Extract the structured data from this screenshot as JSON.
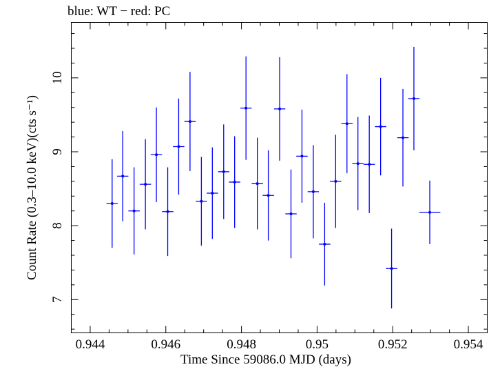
{
  "chart_data": {
    "type": "scatter",
    "title": "blue: WT − red: PC",
    "xlabel": "Time Since 59086.0 MJD (days)",
    "ylabel": "Count Rate (0.3–10.0 keV)(cts s⁻¹)",
    "xlim": [
      0.9435,
      0.9545
    ],
    "ylim": [
      6.55,
      10.75
    ],
    "xticks": [
      0.944,
      0.946,
      0.948,
      0.95,
      0.952,
      0.954
    ],
    "xtick_labels": [
      "0.944",
      "0.946",
      "0.948",
      "0.95",
      "0.952",
      "0.954"
    ],
    "yticks": [
      7,
      8,
      9,
      10
    ],
    "ytick_labels": [
      "7",
      "8",
      "9",
      "10"
    ],
    "grid": false,
    "series": [
      {
        "color": "#0000ff",
        "points": [
          {
            "x": 0.94458,
            "y": 8.3,
            "xerr": 0.00015,
            "yerr": 0.6
          },
          {
            "x": 0.94486,
            "y": 8.67,
            "xerr": 0.00015,
            "yerr": 0.61
          },
          {
            "x": 0.94516,
            "y": 8.2,
            "xerr": 0.00015,
            "yerr": 0.59
          },
          {
            "x": 0.94546,
            "y": 8.56,
            "xerr": 0.00015,
            "yerr": 0.61
          },
          {
            "x": 0.94575,
            "y": 8.96,
            "xerr": 0.00015,
            "yerr": 0.64
          },
          {
            "x": 0.94605,
            "y": 8.19,
            "xerr": 0.00015,
            "yerr": 0.6
          },
          {
            "x": 0.94634,
            "y": 9.07,
            "xerr": 0.00015,
            "yerr": 0.65
          },
          {
            "x": 0.94664,
            "y": 9.41,
            "xerr": 0.00015,
            "yerr": 0.67
          },
          {
            "x": 0.94694,
            "y": 8.33,
            "xerr": 0.00015,
            "yerr": 0.6
          },
          {
            "x": 0.94723,
            "y": 8.44,
            "xerr": 0.00015,
            "yerr": 0.62
          },
          {
            "x": 0.94753,
            "y": 8.73,
            "xerr": 0.00015,
            "yerr": 0.64
          },
          {
            "x": 0.94782,
            "y": 8.59,
            "xerr": 0.00015,
            "yerr": 0.62
          },
          {
            "x": 0.94812,
            "y": 9.59,
            "xerr": 0.00015,
            "yerr": 0.7
          },
          {
            "x": 0.94842,
            "y": 8.57,
            "xerr": 0.00015,
            "yerr": 0.62
          },
          {
            "x": 0.94871,
            "y": 8.41,
            "xerr": 0.00015,
            "yerr": 0.61
          },
          {
            "x": 0.94901,
            "y": 9.58,
            "xerr": 0.00015,
            "yerr": 0.7
          },
          {
            "x": 0.94931,
            "y": 8.16,
            "xerr": 0.00015,
            "yerr": 0.6
          },
          {
            "x": 0.9496,
            "y": 8.94,
            "xerr": 0.00015,
            "yerr": 0.63
          },
          {
            "x": 0.9499,
            "y": 8.46,
            "xerr": 0.00015,
            "yerr": 0.63
          },
          {
            "x": 0.9502,
            "y": 7.75,
            "xerr": 0.00015,
            "yerr": 0.56
          },
          {
            "x": 0.95049,
            "y": 8.6,
            "xerr": 0.00015,
            "yerr": 0.63
          },
          {
            "x": 0.95079,
            "y": 9.38,
            "xerr": 0.00015,
            "yerr": 0.67
          },
          {
            "x": 0.95108,
            "y": 8.84,
            "xerr": 0.00015,
            "yerr": 0.63
          },
          {
            "x": 0.95138,
            "y": 8.83,
            "xerr": 0.00015,
            "yerr": 0.66
          },
          {
            "x": 0.95168,
            "y": 9.34,
            "xerr": 0.00015,
            "yerr": 0.66
          },
          {
            "x": 0.95197,
            "y": 7.42,
            "xerr": 0.00015,
            "yerr": 0.54
          },
          {
            "x": 0.95227,
            "y": 9.19,
            "xerr": 0.00015,
            "yerr": 0.66
          },
          {
            "x": 0.95256,
            "y": 9.72,
            "xerr": 0.00015,
            "yerr": 0.7
          },
          {
            "x": 0.95298,
            "y": 8.18,
            "xerr": 0.00028,
            "yerr": 0.43
          }
        ]
      }
    ]
  }
}
